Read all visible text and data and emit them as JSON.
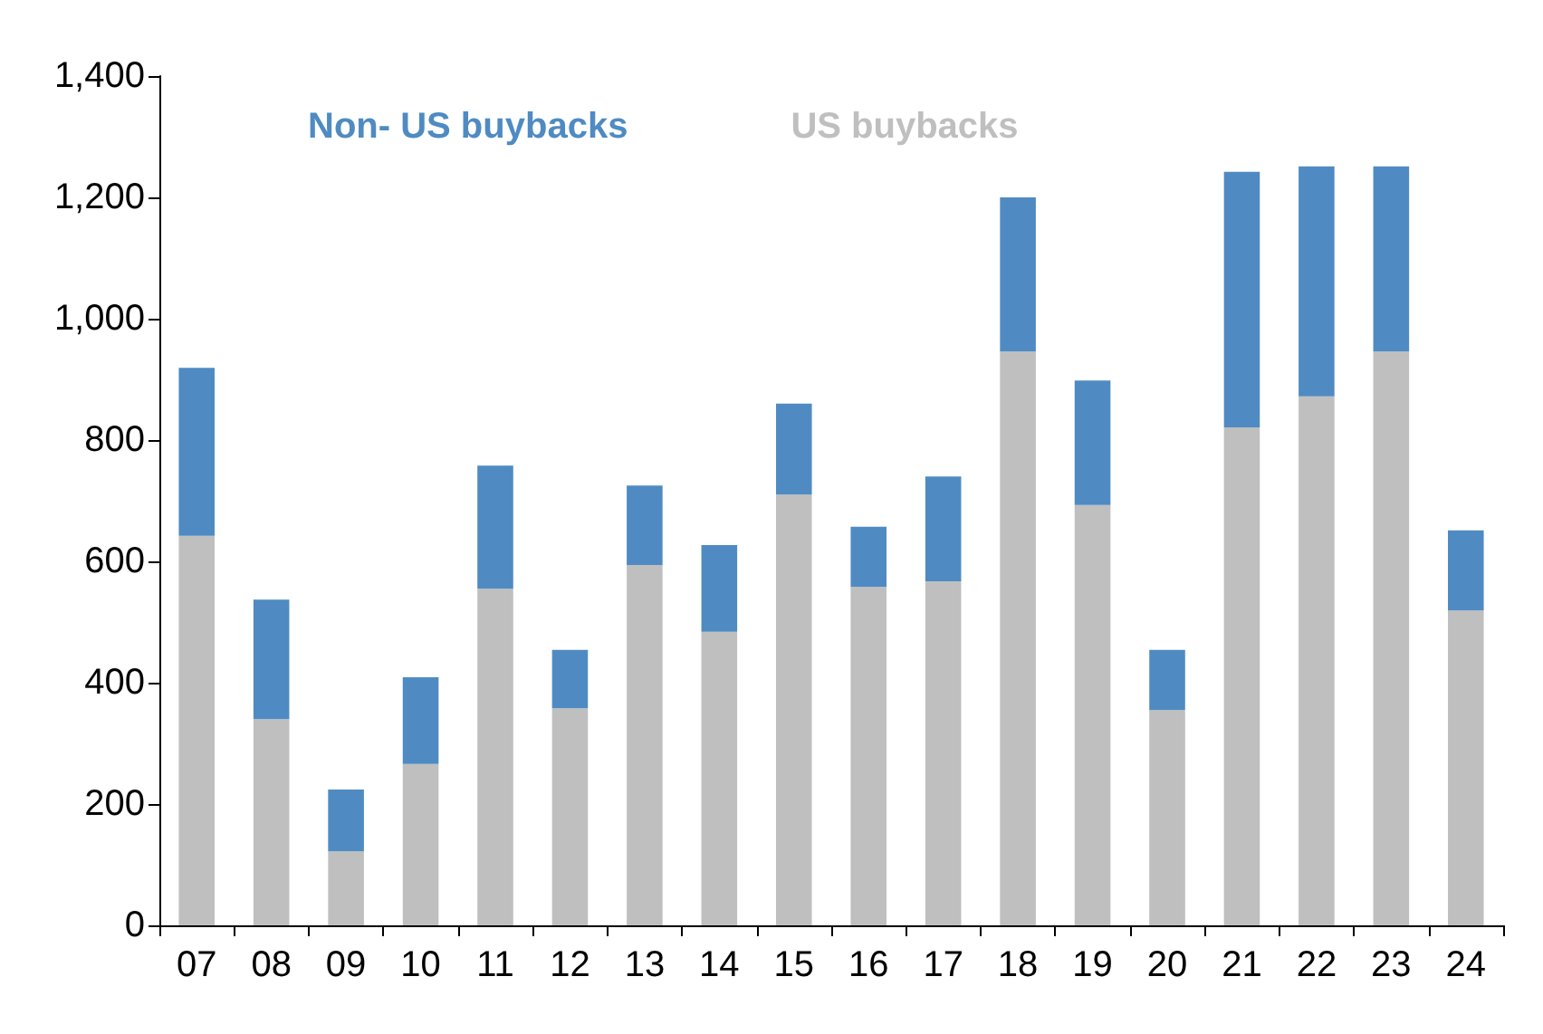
{
  "chart_data": {
    "type": "bar",
    "stacked": true,
    "categories": [
      "07",
      "08",
      "09",
      "10",
      "11",
      "12",
      "13",
      "14",
      "15",
      "16",
      "17",
      "18",
      "19",
      "20",
      "21",
      "22",
      "23",
      "24"
    ],
    "series": [
      {
        "name": "US buybacks",
        "color": "#bfbfbf",
        "values": [
          642,
          340,
          122,
          266,
          555,
          358,
          594,
          484,
          710,
          558,
          567,
          946,
          693,
          355,
          821,
          872,
          946,
          519
        ]
      },
      {
        "name": "Non- US buybacks",
        "color": "#4f8bc2",
        "values": [
          277,
          197,
          102,
          143,
          203,
          96,
          131,
          143,
          150,
          99,
          173,
          254,
          205,
          99,
          421,
          379,
          305,
          132
        ]
      }
    ],
    "ylim": [
      0,
      1400
    ],
    "yticks": [
      0,
      200,
      400,
      600,
      800,
      {
        "value": 1000,
        "label": "1,000"
      },
      {
        "value": 1200,
        "label": "1,200"
      },
      {
        "value": 1400,
        "label": "1,400"
      }
    ],
    "grid": false,
    "legend": "top left"
  }
}
